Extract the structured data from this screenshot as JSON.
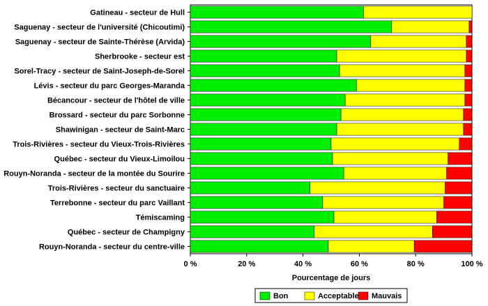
{
  "chart_data": {
    "type": "bar",
    "orientation": "horizontal",
    "stacked": true,
    "categories": [
      "Gatineau - secteur de Hull",
      "Saguenay - secteur de l'université (Chicoutimi)",
      "Saguenay - secteur de Sainte-Thérèse (Arvida)",
      "Sherbrooke - secteur est",
      "Sorel-Tracy - secteur de Saint-Joseph-de-Sorel",
      "Lévis - secteur du parc Georges-Maranda",
      "Bécancour - secteur de l'hôtel de ville",
      "Brossard - secteur du parc Sorbonne",
      "Shawinigan - secteur de Saint-Marc",
      "Trois-Rivières - secteur du Vieux-Trois-Rivières",
      "Québec - secteur du Vieux-Limoilou",
      "Rouyn-Noranda - secteur de la montée du Sourire",
      "Trois-Rivières - secteur du sanctuaire",
      "Terrebonne - secteur du parc Vaillant",
      "Témiscaming",
      "Québec - secteur de Champigny",
      "Rouyn-Noranda - secteur du centre-ville"
    ],
    "series": [
      {
        "name": "Bon",
        "color": "#00ee00",
        "values": [
          61.5,
          71.5,
          64,
          52,
          53,
          59,
          55,
          53.5,
          52,
          50,
          50.5,
          54.5,
          42.5,
          47,
          51,
          44,
          49
        ]
      },
      {
        "name": "Acceptable",
        "color": "#ffff00",
        "values": [
          38.5,
          27.5,
          34,
          46,
          44.5,
          38.5,
          42.5,
          43.5,
          45,
          45.5,
          41,
          36.5,
          48,
          43,
          36.5,
          42,
          30.5
        ]
      },
      {
        "name": "Mauvais",
        "color": "#ff0000",
        "values": [
          0,
          1,
          2,
          2,
          2.5,
          2.5,
          2.5,
          3,
          3,
          4.5,
          8.5,
          9,
          9.5,
          10,
          12.5,
          14,
          20.5
        ]
      }
    ],
    "xlim": [
      0,
      100
    ],
    "xticks": [
      "0 %",
      "20 %",
      "40 %",
      "60 %",
      "80 %",
      "100 %"
    ],
    "xlabel": "Pourcentage de jours",
    "ylabel": "",
    "title": "",
    "grid": false,
    "legend": {
      "placement": "bottom",
      "entries": [
        "Bon",
        "Acceptable",
        "Mauvais"
      ]
    }
  }
}
